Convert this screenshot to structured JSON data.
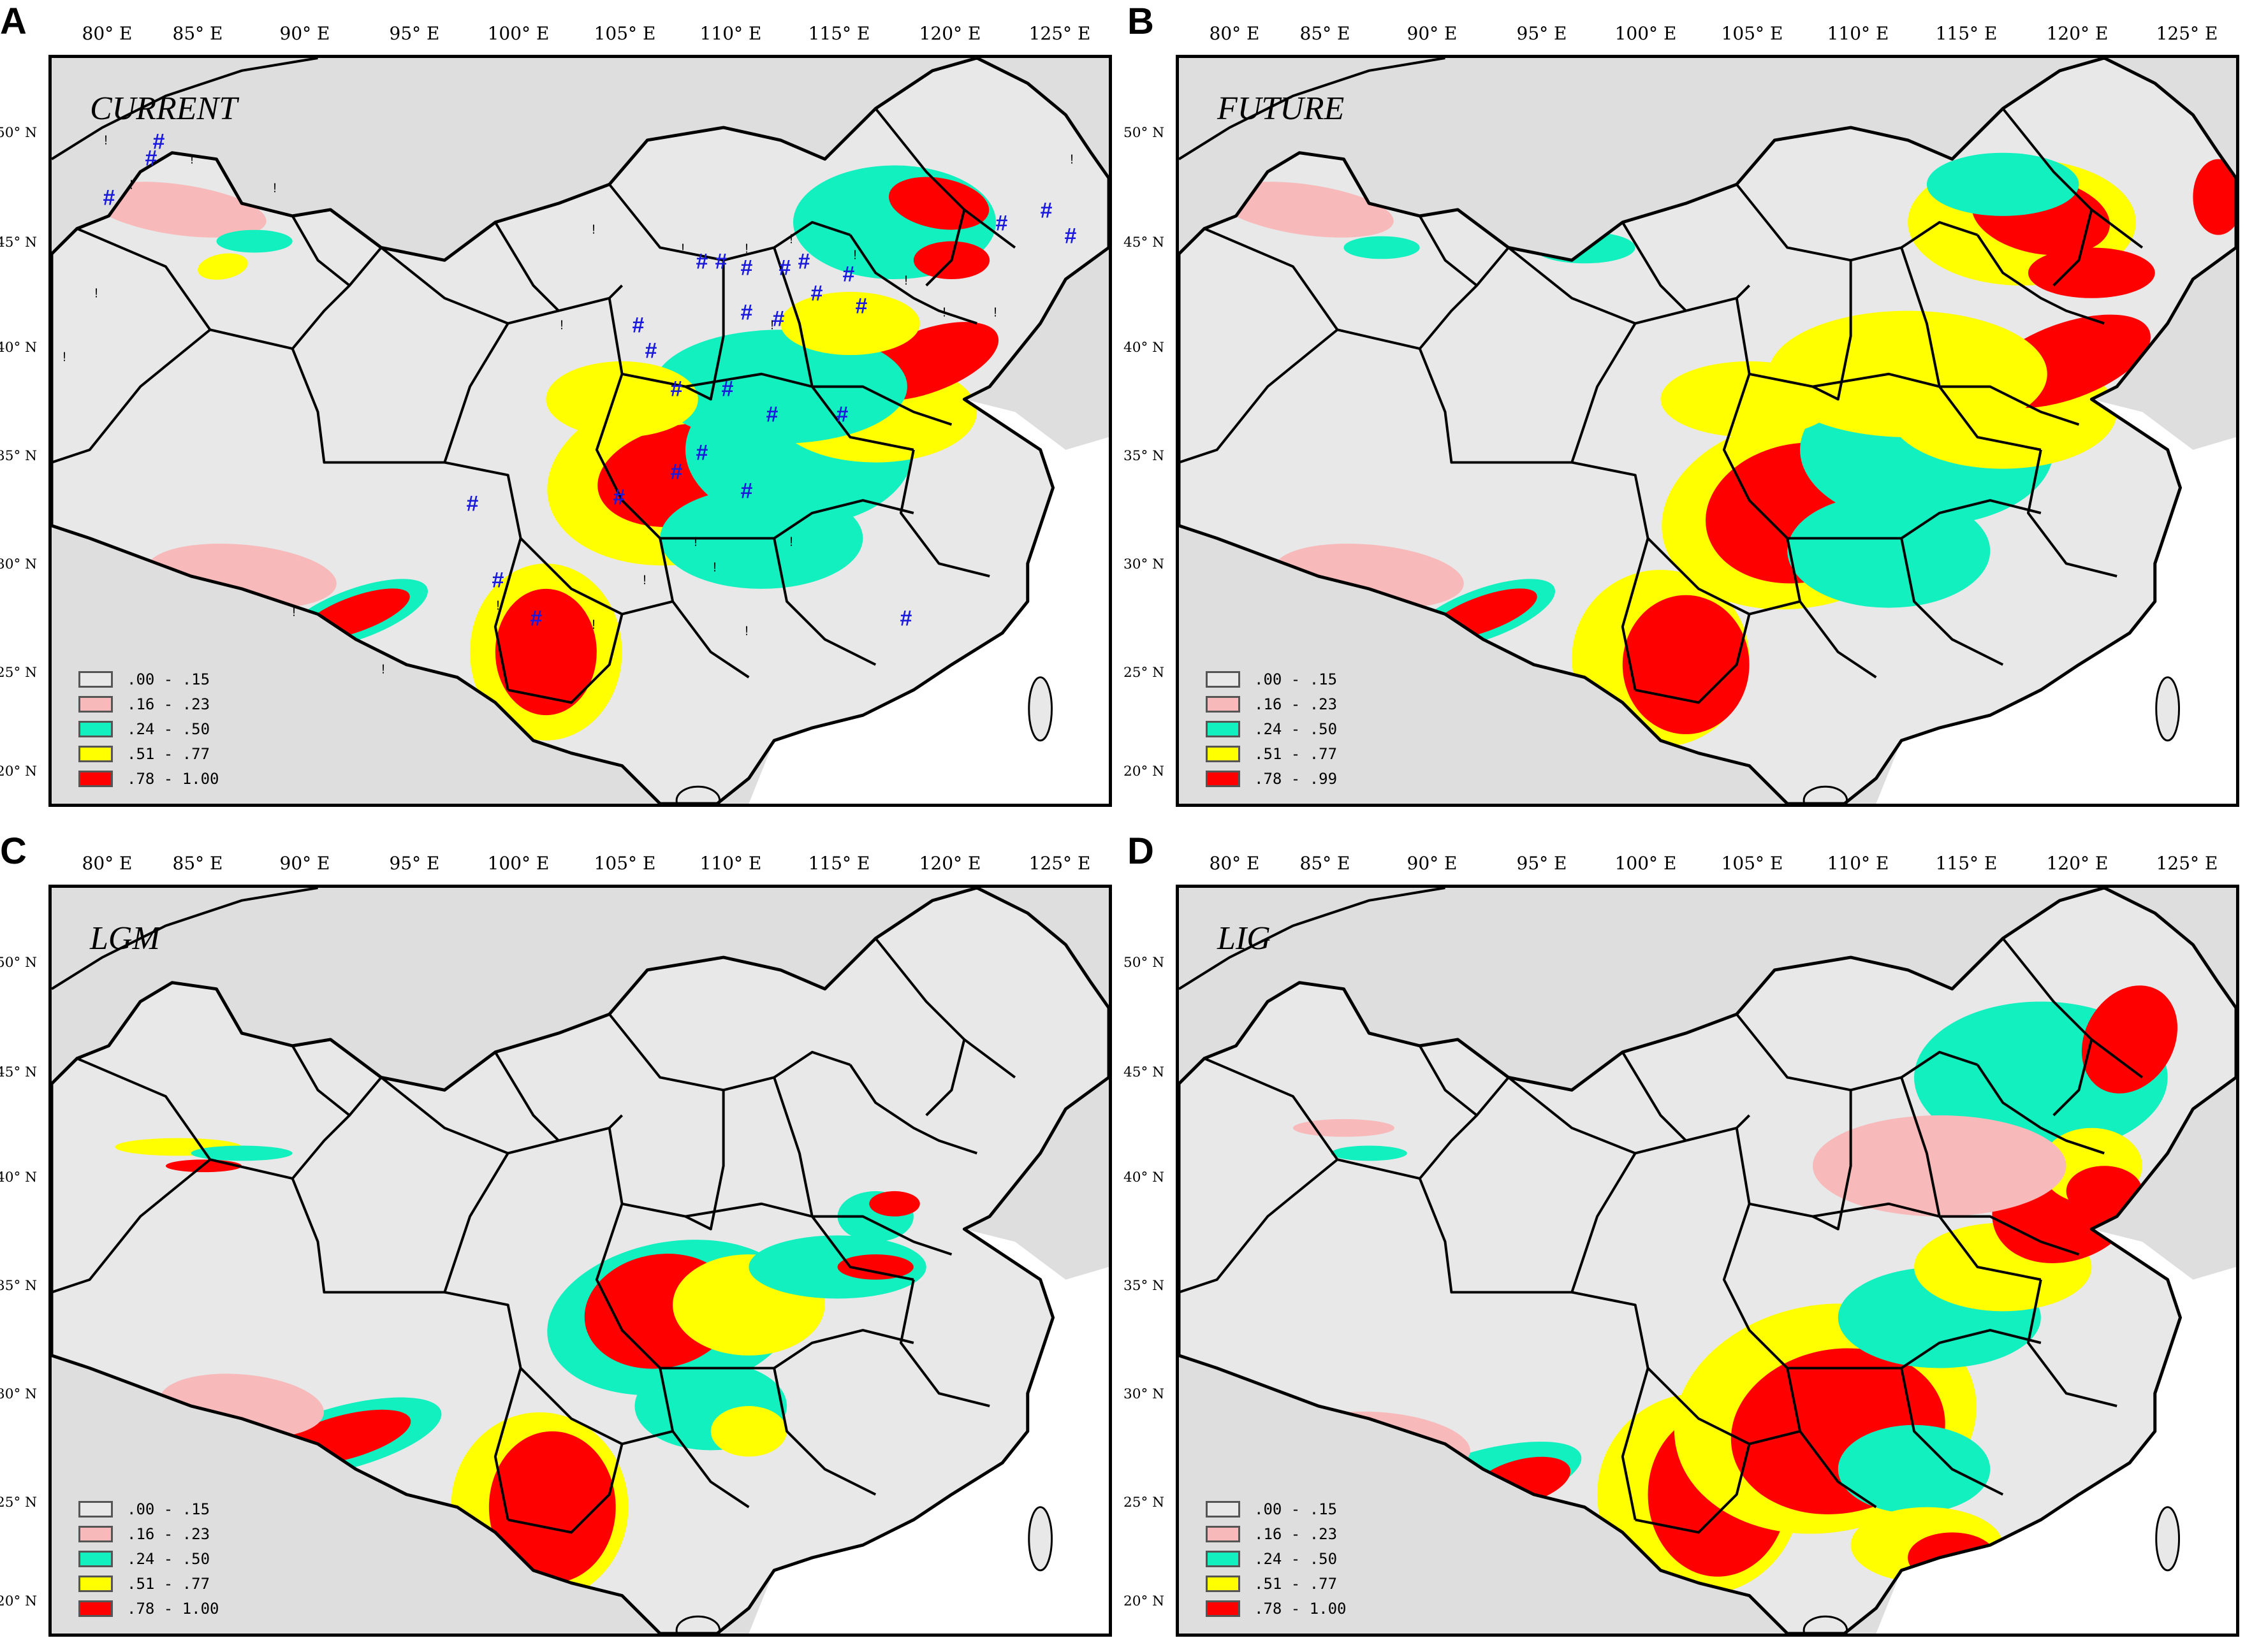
{
  "colors": {
    "land": "#dedede",
    "class0": "#e8e8e8",
    "class1": "#f7b9b9",
    "class2": "#12f0c0",
    "class3": "#ffff00",
    "class4": "#ff0000",
    "border": "#000000",
    "marker": "#1a1adc"
  },
  "longitude_labels": [
    "80° E",
    "85° E",
    "90° E",
    "95° E",
    "100° E",
    "105° E",
    "110° E",
    "115° E",
    "120° E",
    "125° E"
  ],
  "latitude_labels": [
    "50° N",
    "45° N",
    "40° N",
    "35° N",
    "30° N",
    "25° N",
    "20° N"
  ],
  "panels": [
    {
      "letter": "A",
      "title": "CURRENT",
      "legend": [
        ".00 - .15",
        ".16 - .23",
        ".24 - .50",
        ".51 - .77",
        ".78 - 1.00"
      ],
      "occurrence_marker": "#",
      "absence_marker": "!"
    },
    {
      "letter": "B",
      "title": "FUTURE",
      "legend": [
        ".00 - .15",
        ".16 - .23",
        ".24 - .50",
        ".51 - .77",
        ".78 - .99"
      ]
    },
    {
      "letter": "C",
      "title": "LGM",
      "legend": [
        ".00 - .15",
        ".16 - .23",
        ".24 - .50",
        ".51 - .77",
        ".78 - 1.00"
      ]
    },
    {
      "letter": "D",
      "title": "LIG",
      "legend": [
        ".00 - .15",
        ".16 - .23",
        ".24 - .50",
        ".51 - .77",
        ".78 - 1.00"
      ]
    }
  ]
}
